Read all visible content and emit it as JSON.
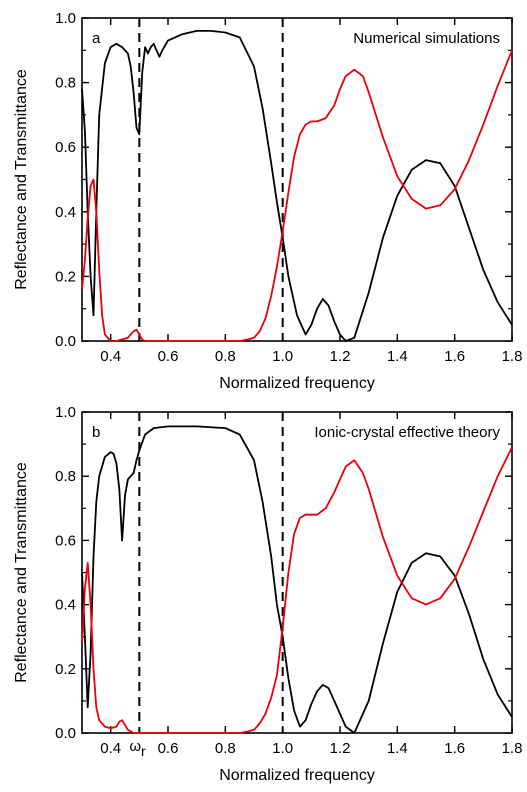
{
  "colors": {
    "reflectance": "#000000",
    "transmittance": "#e8000b",
    "axes": "#000000",
    "marker": "#000000"
  },
  "chart_data": [
    {
      "type": "line",
      "panel_label": "a",
      "title": "Numerical simulations",
      "xlabel": "Normalized frequency",
      "ylabel": "Reflectance and Transmittance",
      "xlim": [
        0.3,
        1.8
      ],
      "ylim": [
        0.0,
        1.0
      ],
      "xticks": [
        "0.4",
        "0.6",
        "0.8",
        "1.0",
        "1.2",
        "1.4",
        "1.6",
        "1.8"
      ],
      "yticks": [
        "0.0",
        "0.2",
        "0.4",
        "0.6",
        "0.8",
        "1.0"
      ],
      "vlines": [
        0.5,
        1.0
      ],
      "vline_labels": [],
      "grid": false,
      "series": [
        {
          "x": [
            0.3,
            0.31,
            0.32,
            0.33,
            0.34,
            0.35,
            0.36,
            0.38,
            0.4,
            0.42,
            0.44,
            0.46,
            0.47,
            0.48,
            0.49,
            0.5,
            0.51,
            0.52,
            0.53,
            0.54,
            0.55,
            0.56,
            0.57,
            0.58,
            0.6,
            0.65,
            0.7,
            0.75,
            0.8,
            0.85,
            0.9,
            0.93,
            0.96,
            0.98,
            1.0,
            1.02,
            1.05,
            1.08,
            1.1,
            1.12,
            1.14,
            1.16,
            1.18,
            1.2,
            1.22,
            1.25,
            1.3,
            1.35,
            1.4,
            1.45,
            1.5,
            1.55,
            1.6,
            1.65,
            1.7,
            1.75,
            1.8
          ],
          "values": [
            0.78,
            0.65,
            0.4,
            0.2,
            0.08,
            0.4,
            0.7,
            0.86,
            0.91,
            0.92,
            0.91,
            0.89,
            0.85,
            0.77,
            0.66,
            0.64,
            0.83,
            0.91,
            0.89,
            0.91,
            0.92,
            0.9,
            0.88,
            0.9,
            0.93,
            0.95,
            0.96,
            0.96,
            0.955,
            0.94,
            0.85,
            0.72,
            0.55,
            0.43,
            0.32,
            0.2,
            0.08,
            0.02,
            0.05,
            0.1,
            0.13,
            0.11,
            0.06,
            0.02,
            0.0,
            0.01,
            0.15,
            0.32,
            0.45,
            0.53,
            0.56,
            0.55,
            0.48,
            0.35,
            0.22,
            0.12,
            0.05
          ]
        },
        {
          "x": [
            0.3,
            0.31,
            0.32,
            0.33,
            0.34,
            0.35,
            0.36,
            0.37,
            0.38,
            0.4,
            0.42,
            0.44,
            0.46,
            0.47,
            0.48,
            0.49,
            0.5,
            0.51,
            0.52,
            0.55,
            0.6,
            0.7,
            0.8,
            0.85,
            0.88,
            0.9,
            0.92,
            0.94,
            0.96,
            0.98,
            1.0,
            1.02,
            1.04,
            1.06,
            1.08,
            1.1,
            1.12,
            1.15,
            1.18,
            1.2,
            1.22,
            1.25,
            1.28,
            1.3,
            1.35,
            1.4,
            1.45,
            1.5,
            1.55,
            1.6,
            1.65,
            1.7,
            1.75,
            1.8
          ],
          "values": [
            0.16,
            0.25,
            0.38,
            0.48,
            0.5,
            0.4,
            0.22,
            0.08,
            0.02,
            0.0,
            0.0,
            0.005,
            0.01,
            0.02,
            0.03,
            0.035,
            0.02,
            0.005,
            0.0,
            0.0,
            0.0,
            0.0,
            0.0,
            0.0,
            0.005,
            0.01,
            0.03,
            0.07,
            0.14,
            0.23,
            0.34,
            0.46,
            0.57,
            0.64,
            0.67,
            0.68,
            0.68,
            0.69,
            0.73,
            0.78,
            0.82,
            0.84,
            0.82,
            0.77,
            0.63,
            0.51,
            0.44,
            0.41,
            0.42,
            0.47,
            0.56,
            0.67,
            0.79,
            0.9
          ]
        }
      ]
    },
    {
      "type": "line",
      "panel_label": "b",
      "title": "Ionic-crystal effective theory",
      "xlabel": "Normalized frequency",
      "ylabel": "Reflectance and Transmittance",
      "xlim": [
        0.3,
        1.8
      ],
      "ylim": [
        0.0,
        1.0
      ],
      "xticks": [
        "0.4",
        "0.6",
        "0.8",
        "1.0",
        "1.2",
        "1.4",
        "1.6",
        "1.8"
      ],
      "yticks": [
        "0.0",
        "0.2",
        "0.4",
        "0.6",
        "0.8",
        "1.0"
      ],
      "vlines": [
        0.5,
        1.0
      ],
      "vline_labels": [
        {
          "text": "ω",
          "sub": "r",
          "x": 0.5
        }
      ],
      "grid": false,
      "series": [
        {
          "x": [
            0.3,
            0.31,
            0.32,
            0.33,
            0.34,
            0.35,
            0.36,
            0.38,
            0.4,
            0.41,
            0.42,
            0.43,
            0.44,
            0.45,
            0.46,
            0.47,
            0.48,
            0.49,
            0.5,
            0.52,
            0.55,
            0.6,
            0.7,
            0.8,
            0.85,
            0.9,
            0.93,
            0.96,
            0.98,
            1.0,
            1.02,
            1.04,
            1.06,
            1.08,
            1.1,
            1.12,
            1.14,
            1.16,
            1.18,
            1.2,
            1.22,
            1.25,
            1.3,
            1.35,
            1.4,
            1.45,
            1.5,
            1.55,
            1.6,
            1.65,
            1.7,
            1.75,
            1.8
          ],
          "values": [
            0.5,
            0.3,
            0.08,
            0.25,
            0.55,
            0.72,
            0.8,
            0.86,
            0.875,
            0.87,
            0.84,
            0.76,
            0.6,
            0.74,
            0.79,
            0.8,
            0.81,
            0.85,
            0.88,
            0.93,
            0.95,
            0.955,
            0.955,
            0.95,
            0.93,
            0.85,
            0.72,
            0.55,
            0.4,
            0.3,
            0.17,
            0.07,
            0.02,
            0.04,
            0.09,
            0.13,
            0.15,
            0.14,
            0.1,
            0.06,
            0.02,
            0.0,
            0.1,
            0.28,
            0.44,
            0.53,
            0.56,
            0.55,
            0.49,
            0.37,
            0.23,
            0.12,
            0.05
          ]
        },
        {
          "x": [
            0.3,
            0.31,
            0.32,
            0.33,
            0.34,
            0.35,
            0.36,
            0.38,
            0.4,
            0.42,
            0.43,
            0.44,
            0.45,
            0.46,
            0.48,
            0.5,
            0.55,
            0.6,
            0.7,
            0.8,
            0.85,
            0.88,
            0.9,
            0.92,
            0.94,
            0.96,
            0.98,
            1.0,
            1.02,
            1.04,
            1.06,
            1.08,
            1.1,
            1.12,
            1.15,
            1.18,
            1.2,
            1.22,
            1.25,
            1.28,
            1.3,
            1.35,
            1.4,
            1.45,
            1.5,
            1.55,
            1.6,
            1.65,
            1.7,
            1.75,
            1.8
          ],
          "values": [
            0.28,
            0.45,
            0.53,
            0.4,
            0.2,
            0.08,
            0.04,
            0.02,
            0.015,
            0.02,
            0.035,
            0.04,
            0.025,
            0.01,
            0.0,
            0.0,
            0.0,
            0.0,
            0.0,
            0.0,
            0.0,
            0.005,
            0.01,
            0.03,
            0.06,
            0.11,
            0.18,
            0.33,
            0.5,
            0.62,
            0.67,
            0.68,
            0.68,
            0.68,
            0.7,
            0.75,
            0.79,
            0.83,
            0.85,
            0.81,
            0.76,
            0.61,
            0.49,
            0.42,
            0.4,
            0.42,
            0.48,
            0.58,
            0.69,
            0.8,
            0.89
          ]
        }
      ]
    }
  ]
}
